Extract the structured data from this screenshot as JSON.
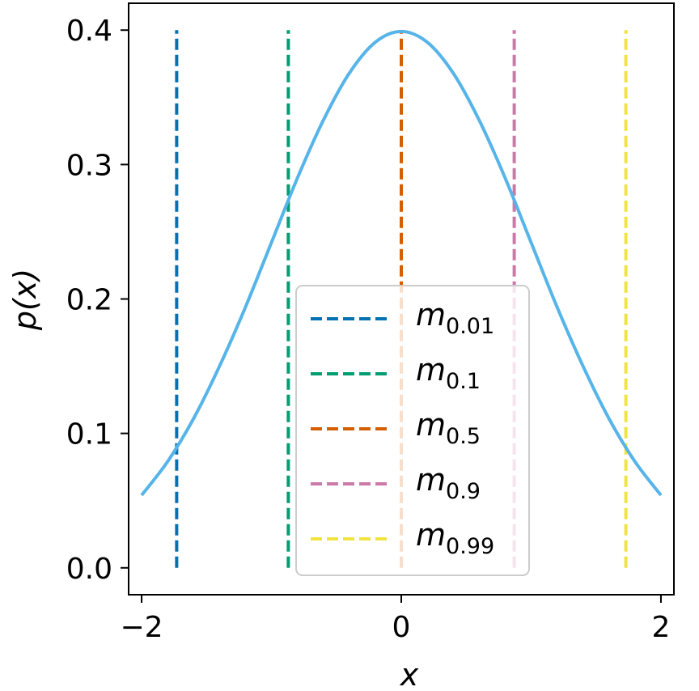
{
  "chart_data": {
    "type": "line",
    "title": "",
    "xlabel": "x",
    "ylabel": "p(x)",
    "xlim": [
      -2.1,
      2.1
    ],
    "ylim": [
      -0.02,
      0.42
    ],
    "xticks": [
      -2,
      0,
      2
    ],
    "xtick_labels": [
      "−2",
      "0",
      "2"
    ],
    "yticks": [
      0.0,
      0.1,
      0.2,
      0.3,
      0.4
    ],
    "ytick_labels": [
      "0.0",
      "0.1",
      "0.2",
      "0.3",
      "0.4"
    ],
    "grid": false,
    "legend_position": "lower center",
    "curve": {
      "color": "#56b4e9",
      "x": [
        -2.0,
        -1.8,
        -1.6,
        -1.4,
        -1.2,
        -1.0,
        -0.8,
        -0.6,
        -0.4,
        -0.2,
        0.0,
        0.2,
        0.4,
        0.6,
        0.8,
        1.0,
        1.2,
        1.4,
        1.6,
        1.8,
        2.0
      ],
      "y": [
        0.054,
        0.079,
        0.111,
        0.15,
        0.194,
        0.242,
        0.29,
        0.333,
        0.368,
        0.391,
        0.399,
        0.391,
        0.368,
        0.333,
        0.29,
        0.242,
        0.194,
        0.15,
        0.111,
        0.079,
        0.054
      ]
    },
    "series": [
      {
        "name": "m",
        "subscript": "0.01",
        "x": -1.73,
        "y_range": [
          0.0,
          0.4
        ],
        "color": "#0072b2",
        "style": "dashed"
      },
      {
        "name": "m",
        "subscript": "0.1",
        "x": -0.87,
        "y_range": [
          0.0,
          0.4
        ],
        "color": "#009e73",
        "style": "dashed"
      },
      {
        "name": "m",
        "subscript": "0.5",
        "x": 0.0,
        "y_range": [
          0.0,
          0.4
        ],
        "color": "#d55e00",
        "style": "dashed"
      },
      {
        "name": "m",
        "subscript": "0.9",
        "x": 0.87,
        "y_range": [
          0.0,
          0.4
        ],
        "color": "#cc79a7",
        "style": "dashed"
      },
      {
        "name": "m",
        "subscript": "0.99",
        "x": 1.73,
        "y_range": [
          0.0,
          0.4
        ],
        "color": "#f0e442",
        "style": "dashed"
      }
    ]
  }
}
